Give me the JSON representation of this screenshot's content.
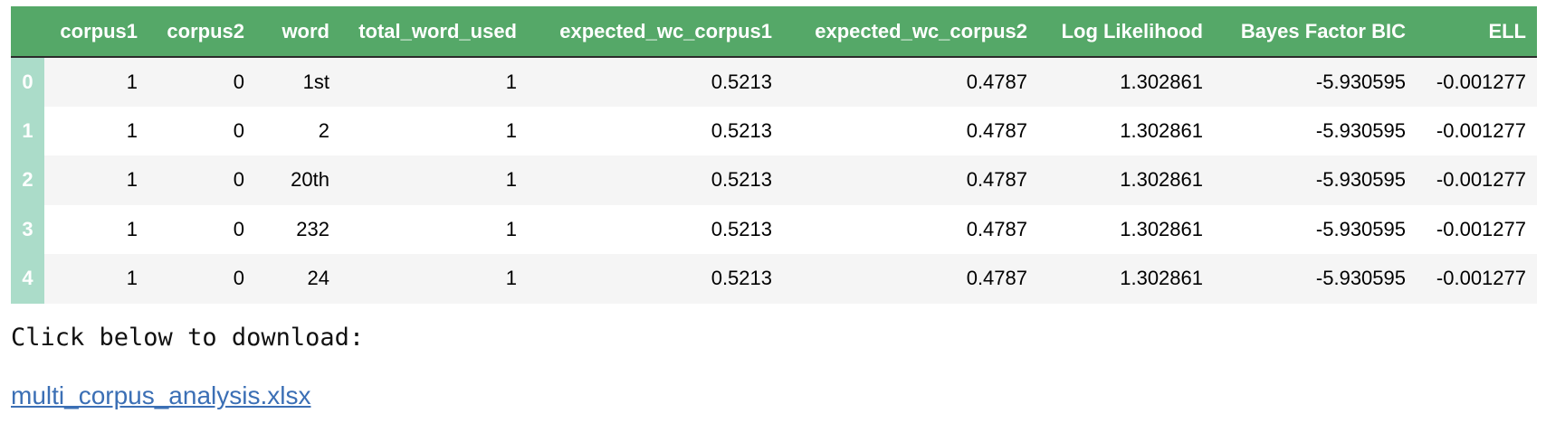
{
  "table": {
    "columns": [
      "",
      "corpus1",
      "corpus2",
      "word",
      "total_word_used",
      "expected_wc_corpus1",
      "expected_wc_corpus2",
      "Log Likelihood",
      "Bayes Factor BIC",
      "ELL"
    ],
    "rows": [
      {
        "index": "0",
        "corpus1": "1",
        "corpus2": "0",
        "word": "1st",
        "total_word_used": "1",
        "expected_wc_corpus1": "0.5213",
        "expected_wc_corpus2": "0.4787",
        "log_likelihood": "1.302861",
        "bayes_factor_bic": "-5.930595",
        "ell": "-0.001277"
      },
      {
        "index": "1",
        "corpus1": "1",
        "corpus2": "0",
        "word": "2",
        "total_word_used": "1",
        "expected_wc_corpus1": "0.5213",
        "expected_wc_corpus2": "0.4787",
        "log_likelihood": "1.302861",
        "bayes_factor_bic": "-5.930595",
        "ell": "-0.001277"
      },
      {
        "index": "2",
        "corpus1": "1",
        "corpus2": "0",
        "word": "20th",
        "total_word_used": "1",
        "expected_wc_corpus1": "0.5213",
        "expected_wc_corpus2": "0.4787",
        "log_likelihood": "1.302861",
        "bayes_factor_bic": "-5.930595",
        "ell": "-0.001277"
      },
      {
        "index": "3",
        "corpus1": "1",
        "corpus2": "0",
        "word": "232",
        "total_word_used": "1",
        "expected_wc_corpus1": "0.5213",
        "expected_wc_corpus2": "0.4787",
        "log_likelihood": "1.302861",
        "bayes_factor_bic": "-5.930595",
        "ell": "-0.001277"
      },
      {
        "index": "4",
        "corpus1": "1",
        "corpus2": "0",
        "word": "24",
        "total_word_used": "1",
        "expected_wc_corpus1": "0.5213",
        "expected_wc_corpus2": "0.4787",
        "log_likelihood": "1.302861",
        "bayes_factor_bic": "-5.930595",
        "ell": "-0.001277"
      }
    ]
  },
  "caption": "Click below to download:",
  "download_link": "multi_corpus_analysis.xlsx",
  "colors": {
    "header_bg": "#55a868",
    "index_bg": "#abdcc9",
    "link": "#3b6fb5",
    "stripe": "#f5f5f5"
  }
}
